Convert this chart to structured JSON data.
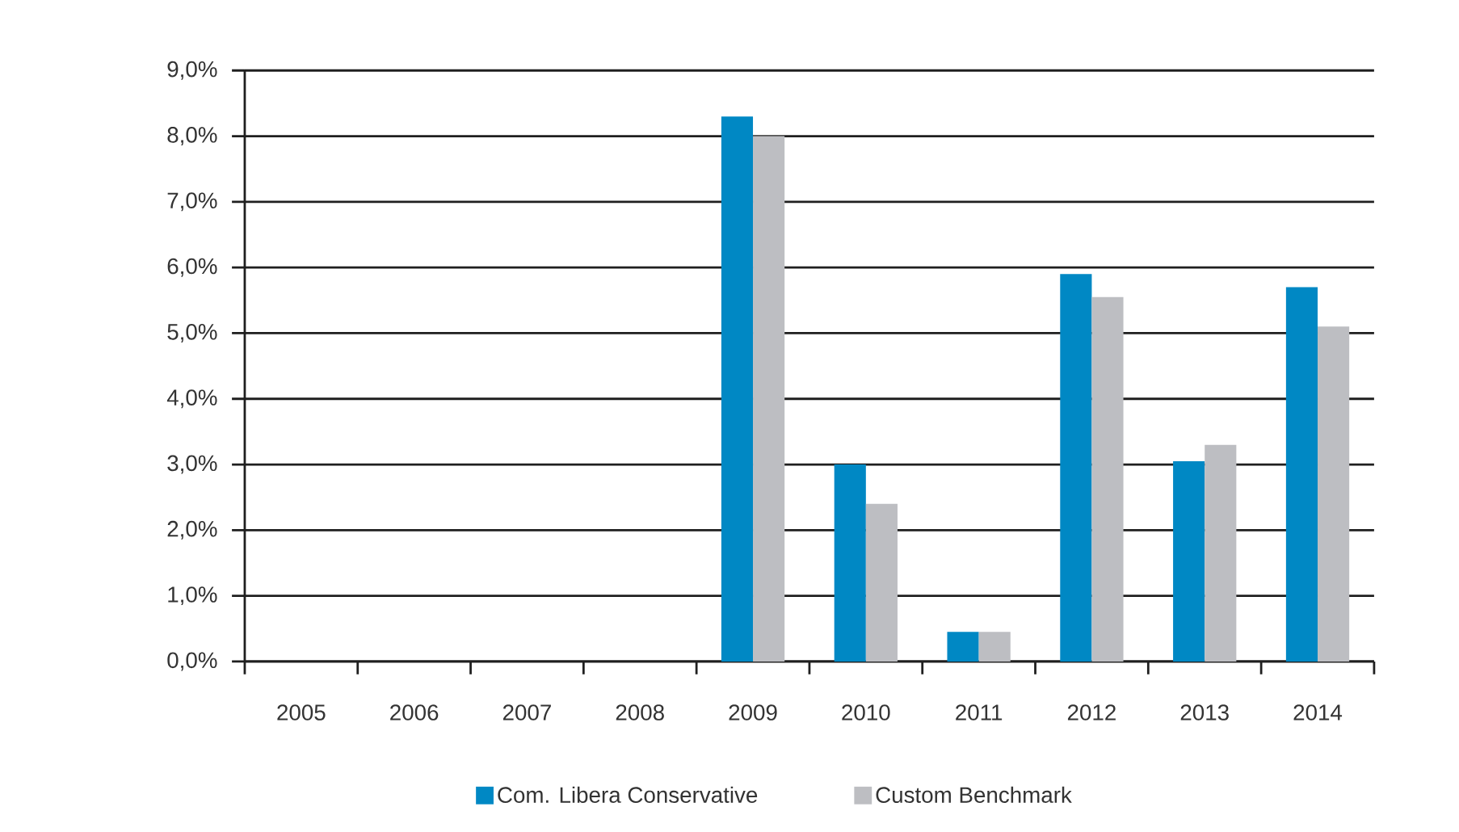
{
  "chart_data": {
    "type": "bar",
    "categories": [
      "2005",
      "2006",
      "2007",
      "2008",
      "2009",
      "2010",
      "2011",
      "2012",
      "2013",
      "2014"
    ],
    "series": [
      {
        "name": "Com. Libera Conservative",
        "color": "#0088c4",
        "values": [
          null,
          null,
          null,
          null,
          8.3,
          3.0,
          0.45,
          5.9,
          3.05,
          5.7
        ]
      },
      {
        "name": "Custom Benchmark",
        "color": "#bdbec2",
        "values": [
          null,
          null,
          null,
          null,
          8.0,
          2.4,
          0.45,
          5.55,
          3.3,
          5.1
        ]
      }
    ],
    "ylim": [
      0,
      9
    ],
    "yticks": [
      {
        "value": 0,
        "label": "0,0%"
      },
      {
        "value": 1,
        "label": "1,0%"
      },
      {
        "value": 2,
        "label": "2,0%"
      },
      {
        "value": 3,
        "label": "3,0%"
      },
      {
        "value": 4,
        "label": "4,0%"
      },
      {
        "value": 5,
        "label": "5,0%"
      },
      {
        "value": 6,
        "label": "6,0%"
      },
      {
        "value": 7,
        "label": "7,0%"
      },
      {
        "value": 8,
        "label": "8,0%"
      },
      {
        "value": 9,
        "label": "9,0%"
      }
    ],
    "grid": "y",
    "legend": "bottom"
  }
}
